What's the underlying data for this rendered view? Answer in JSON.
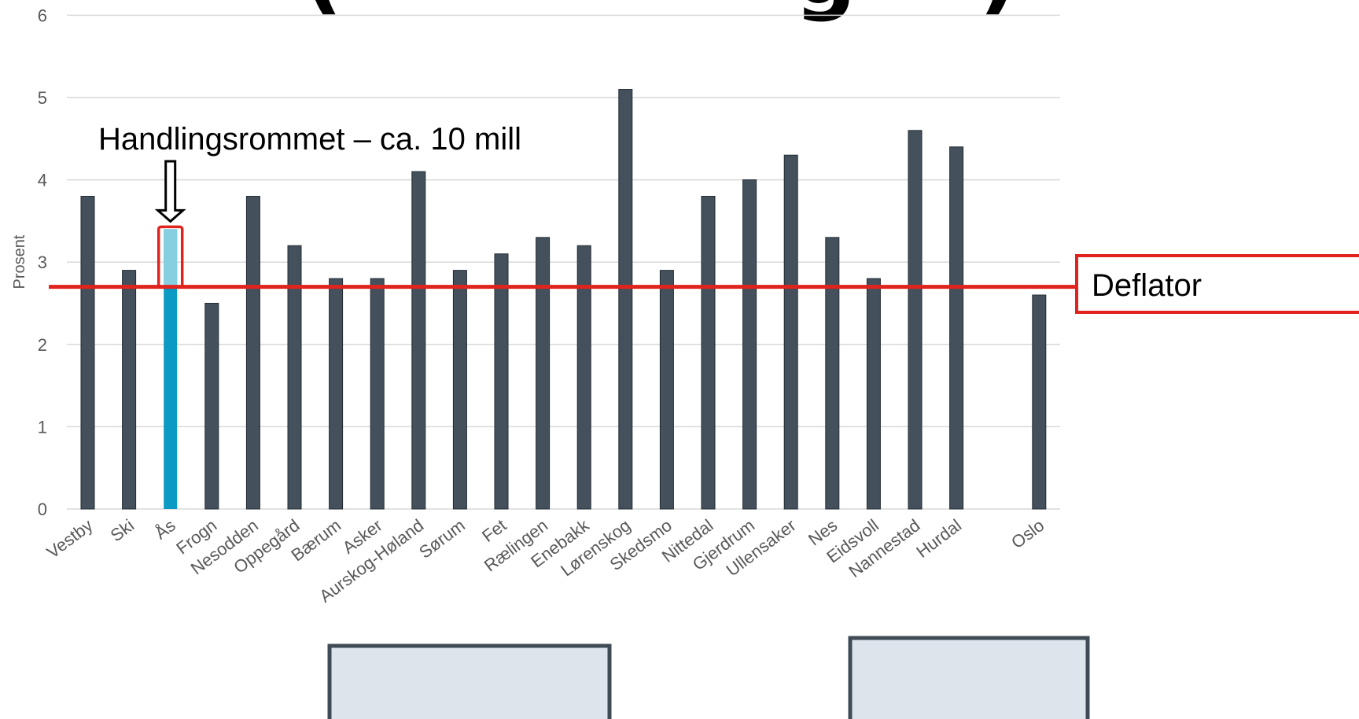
{
  "title_fragments": [
    "(",
    "g",
    ")"
  ],
  "colors": {
    "bar": "#44515c",
    "highlight_bar": "#0a9ac3",
    "highlight_top": "#86cfe0",
    "deflator_line": "#e0231c",
    "grid": "#d9d9d9",
    "axis_text": "#595959",
    "bottom_box_fill": "#dde5ec",
    "bottom_box_stroke": "#3f4c57"
  },
  "chart_data": {
    "type": "bar",
    "ylabel": "Prosent",
    "xlabel": "",
    "ylim": [
      0,
      6
    ],
    "yticks": [
      0,
      1,
      2,
      3,
      4,
      5,
      6
    ],
    "grid": true,
    "categories": [
      "Vestby",
      "Ski",
      "Ås",
      "Frogn",
      "Nesodden",
      "Oppegård",
      "Bærum",
      "Asker",
      "Aurskog-Høland",
      "Sørum",
      "Fet",
      "Rælingen",
      "Enebakk",
      "Lørenskog",
      "Skedsmo",
      "Nittedal",
      "Gjerdrum",
      "Ullensaker",
      "Nes",
      "Eidsvoll",
      "Nannestad",
      "Hurdal",
      "",
      "Oslo"
    ],
    "values": [
      3.8,
      2.9,
      3.4,
      2.5,
      3.8,
      3.2,
      2.8,
      2.8,
      4.1,
      2.9,
      3.1,
      3.3,
      3.2,
      5.1,
      2.9,
      3.8,
      4.0,
      4.3,
      3.3,
      2.8,
      4.6,
      4.4,
      null,
      2.6
    ],
    "highlight": {
      "category": "Ås",
      "base_value": 2.7,
      "top_value": 3.4
    },
    "reference_line": {
      "label": "Deflator",
      "value": 2.7
    },
    "annotation": {
      "text": "Handlingsrommet – ca. 10 mill",
      "target": "Ås"
    }
  }
}
